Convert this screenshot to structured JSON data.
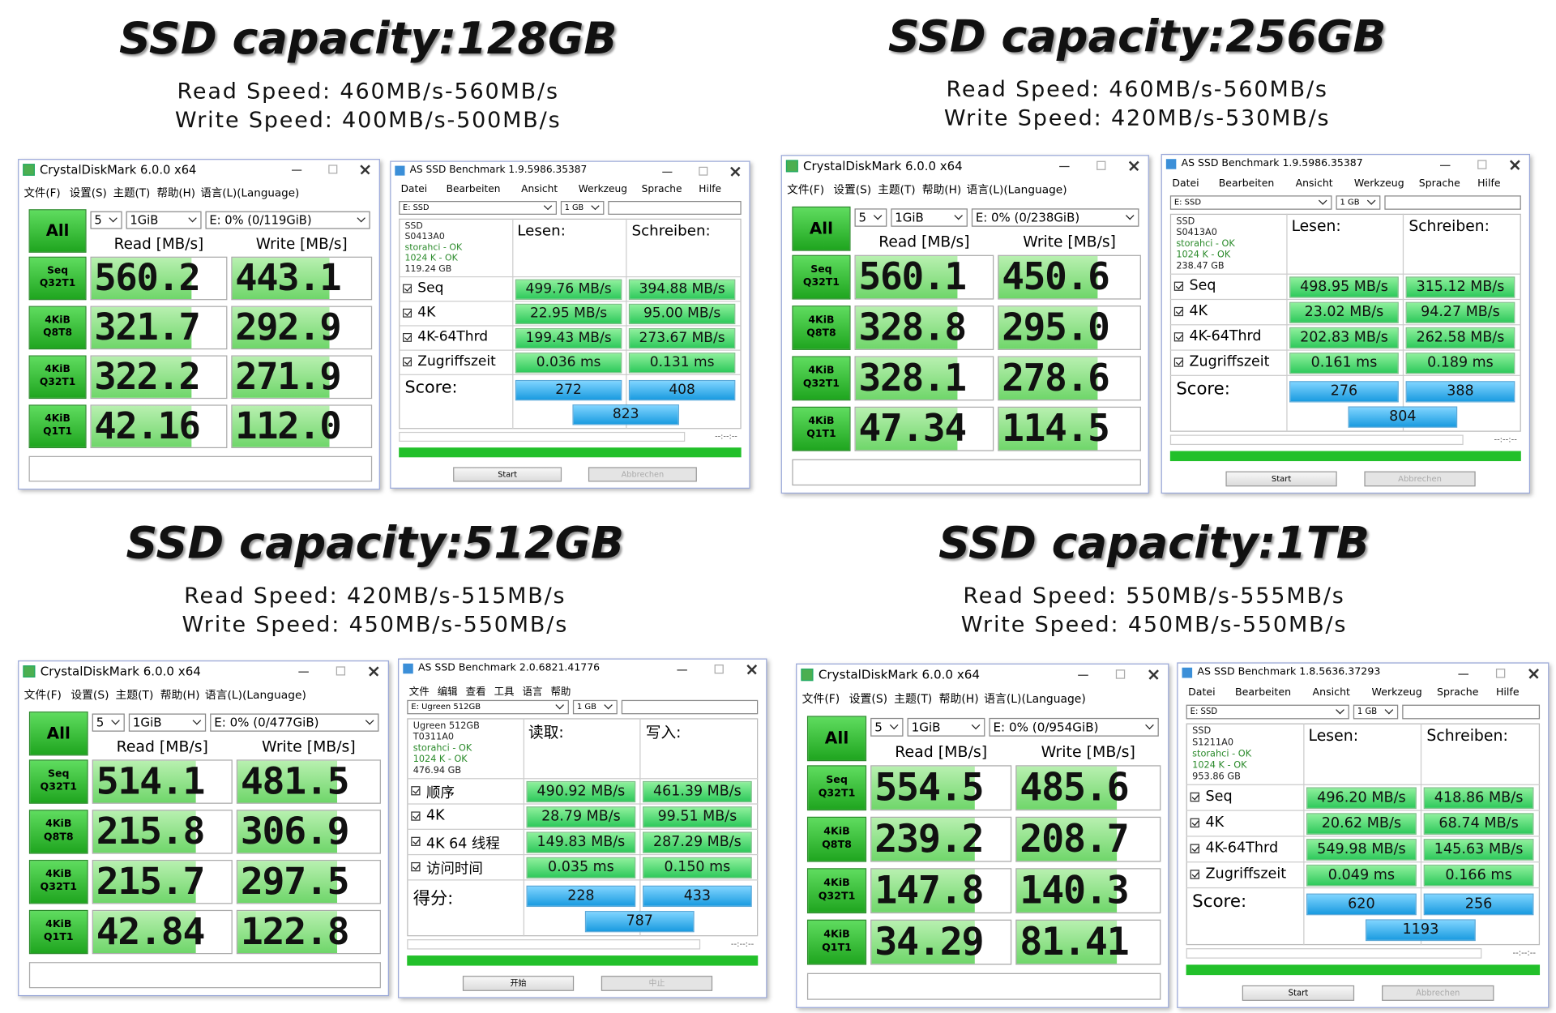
{
  "panels": [
    {
      "title": "SSD capacity:128GB",
      "read_speed": "Read Speed: 460MB/s-560MB/s",
      "write_speed": "Write Speed: 400MB/s-500MB/s",
      "crystal": {
        "title": "CrystalDiskMark 6.0.0 x64",
        "menu": [
          "文件(F)",
          "设置(S)",
          "主题(T)",
          "帮助(H)",
          "语言(L)(Language)"
        ],
        "all": "All",
        "count": "5",
        "size": "1GiB",
        "drive": "E: 0% (0/119GiB)",
        "read_header": "Read [MB/s]",
        "write_header": "Write [MB/s]",
        "rows": [
          {
            "name": "Seq",
            "params": "Q32T1",
            "read": "560.2",
            "write": "443.1"
          },
          {
            "name": "4KiB",
            "params": "Q8T8",
            "read": "321.7",
            "write": "292.9"
          },
          {
            "name": "4KiB",
            "params": "Q32T1",
            "read": "322.2",
            "write": "271.9"
          },
          {
            "name": "4KiB",
            "params": "Q1T1",
            "read": "42.16",
            "write": "112.0"
          }
        ]
      },
      "as_ssd": {
        "title": "AS SSD Benchmark 1.9.5986.35387",
        "menu": [
          "Datei",
          "Bearbeiten",
          "Ansicht",
          "Werkzeug",
          "Sprache",
          "Hilfe"
        ],
        "drive": "E: SSD",
        "size": "1 GB",
        "info": [
          "SSD",
          "S0413A0",
          "storahci - OK",
          "1024 K - OK",
          "119.24 GB"
        ],
        "read_header": "Lesen:",
        "write_header": "Schreiben:",
        "rows": [
          {
            "name": "Seq",
            "read": "499.76 MB/s",
            "write": "394.88 MB/s"
          },
          {
            "name": "4K",
            "read": "22.95 MB/s",
            "write": "95.00 MB/s"
          },
          {
            "name": "4K-64Thrd",
            "read": "199.43 MB/s",
            "write": "273.67 MB/s"
          },
          {
            "name": "Zugriffszeit",
            "read": "0.036 ms",
            "write": "0.131 ms"
          }
        ],
        "score_label": "Score:",
        "score": {
          "read": "272",
          "write": "408",
          "total": "823"
        },
        "timer": "--:--:--",
        "start": "Start",
        "stop": "Abbrechen"
      }
    },
    {
      "title": "SSD capacity:256GB",
      "read_speed": "Read Speed: 460MB/s-560MB/s",
      "write_speed": "Write Speed: 420MB/s-530MB/s",
      "crystal": {
        "title": "CrystalDiskMark 6.0.0 x64",
        "menu": [
          "文件(F)",
          "设置(S)",
          "主题(T)",
          "帮助(H)",
          "语言(L)(Language)"
        ],
        "all": "All",
        "count": "5",
        "size": "1GiB",
        "drive": "E: 0% (0/238GiB)",
        "read_header": "Read [MB/s]",
        "write_header": "Write [MB/s]",
        "rows": [
          {
            "name": "Seq",
            "params": "Q32T1",
            "read": "560.1",
            "write": "450.6"
          },
          {
            "name": "4KiB",
            "params": "Q8T8",
            "read": "328.8",
            "write": "295.0"
          },
          {
            "name": "4KiB",
            "params": "Q32T1",
            "read": "328.1",
            "write": "278.6"
          },
          {
            "name": "4KiB",
            "params": "Q1T1",
            "read": "47.34",
            "write": "114.5"
          }
        ]
      },
      "as_ssd": {
        "title": "AS SSD Benchmark 1.9.5986.35387",
        "menu": [
          "Datei",
          "Bearbeiten",
          "Ansicht",
          "Werkzeug",
          "Sprache",
          "Hilfe"
        ],
        "drive": "E: SSD",
        "size": "1 GB",
        "info": [
          "SSD",
          "S0413A0",
          "storahci - OK",
          "1024 K - OK",
          "238.47 GB"
        ],
        "read_header": "Lesen:",
        "write_header": "Schreiben:",
        "rows": [
          {
            "name": "Seq",
            "read": "498.95 MB/s",
            "write": "315.12 MB/s"
          },
          {
            "name": "4K",
            "read": "23.02 MB/s",
            "write": "94.27 MB/s"
          },
          {
            "name": "4K-64Thrd",
            "read": "202.83 MB/s",
            "write": "262.58 MB/s"
          },
          {
            "name": "Zugriffszeit",
            "read": "0.161 ms",
            "write": "0.189 ms"
          }
        ],
        "score_label": "Score:",
        "score": {
          "read": "276",
          "write": "388",
          "total": "804"
        },
        "timer": "--:--:--",
        "start": "Start",
        "stop": "Abbrechen"
      }
    },
    {
      "title": "SSD capacity:512GB",
      "read_speed": "Read Speed: 420MB/s-515MB/s",
      "write_speed": "Write Speed: 450MB/s-550MB/s",
      "crystal": {
        "title": "CrystalDiskMark 6.0.0 x64",
        "menu": [
          "文件(F)",
          "设置(S)",
          "主题(T)",
          "帮助(H)",
          "语言(L)(Language)"
        ],
        "all": "All",
        "count": "5",
        "size": "1GiB",
        "drive": "E: 0% (0/477GiB)",
        "read_header": "Read [MB/s]",
        "write_header": "Write [MB/s]",
        "rows": [
          {
            "name": "Seq",
            "params": "Q32T1",
            "read": "514.1",
            "write": "481.5"
          },
          {
            "name": "4KiB",
            "params": "Q8T8",
            "read": "215.8",
            "write": "306.9"
          },
          {
            "name": "4KiB",
            "params": "Q32T1",
            "read": "215.7",
            "write": "297.5"
          },
          {
            "name": "4KiB",
            "params": "Q1T1",
            "read": "42.84",
            "write": "122.8"
          }
        ]
      },
      "as_ssd": {
        "title": "AS SSD Benchmark 2.0.6821.41776",
        "menu": [
          "文件",
          "编辑",
          "查看",
          "工具",
          "语言",
          "帮助"
        ],
        "drive": "E: Ugreen 512GB",
        "size": "1 GB",
        "info": [
          "Ugreen 512GB",
          "T0311A0",
          "storahci - OK",
          "1024 K - OK",
          "476.94 GB"
        ],
        "read_header": "读取:",
        "write_header": "写入:",
        "rows": [
          {
            "name": "顺序",
            "read": "490.92 MB/s",
            "write": "461.39 MB/s"
          },
          {
            "name": "4K",
            "read": "28.79 MB/s",
            "write": "99.51 MB/s"
          },
          {
            "name": "4K 64 线程",
            "read": "149.83 MB/s",
            "write": "287.29 MB/s"
          },
          {
            "name": "访问时间",
            "read": "0.035 ms",
            "write": "0.150 ms"
          }
        ],
        "score_label": "得分:",
        "score": {
          "read": "228",
          "write": "433",
          "total": "787"
        },
        "timer": "--:--:--",
        "start": "开始",
        "stop": "中止"
      }
    },
    {
      "title": "SSD capacity:1TB",
      "read_speed": "Read Speed: 550MB/s-555MB/s",
      "write_speed": "Write Speed: 450MB/s-550MB/s",
      "crystal": {
        "title": "CrystalDiskMark 6.0.0 x64",
        "menu": [
          "文件(F)",
          "设置(S)",
          "主题(T)",
          "帮助(H)",
          "语言(L)(Language)"
        ],
        "all": "All",
        "count": "5",
        "size": "1GiB",
        "drive": "E: 0% (0/954GiB)",
        "read_header": "Read [MB/s]",
        "write_header": "Write [MB/s]",
        "rows": [
          {
            "name": "Seq",
            "params": "Q32T1",
            "read": "554.5",
            "write": "485.6"
          },
          {
            "name": "4KiB",
            "params": "Q8T8",
            "read": "239.2",
            "write": "208.7"
          },
          {
            "name": "4KiB",
            "params": "Q32T1",
            "read": "147.8",
            "write": "140.3"
          },
          {
            "name": "4KiB",
            "params": "Q1T1",
            "read": "34.29",
            "write": "81.41"
          }
        ]
      },
      "as_ssd": {
        "title": "AS SSD Benchmark 1.8.5636.37293",
        "menu": [
          "Datei",
          "Bearbeiten",
          "Ansicht",
          "Werkzeug",
          "Sprache",
          "Hilfe"
        ],
        "drive": "E: SSD",
        "size": "1 GB",
        "info": [
          "SSD",
          "S1211A0",
          "storahci - OK",
          "1024 K - OK",
          "953.86 GB"
        ],
        "read_header": "Lesen:",
        "write_header": "Schreiben:",
        "rows": [
          {
            "name": "Seq",
            "read": "496.20 MB/s",
            "write": "418.86 MB/s"
          },
          {
            "name": "4K",
            "read": "20.62 MB/s",
            "write": "68.74 MB/s"
          },
          {
            "name": "4K-64Thrd",
            "read": "549.98 MB/s",
            "write": "145.63 MB/s"
          },
          {
            "name": "Zugriffszeit",
            "read": "0.049 ms",
            "write": "0.166 ms"
          }
        ],
        "score_label": "Score:",
        "score": {
          "read": "620",
          "write": "256",
          "total": "1193"
        },
        "timer": "--:--:--",
        "start": "Start",
        "stop": "Abbrechen"
      }
    }
  ]
}
